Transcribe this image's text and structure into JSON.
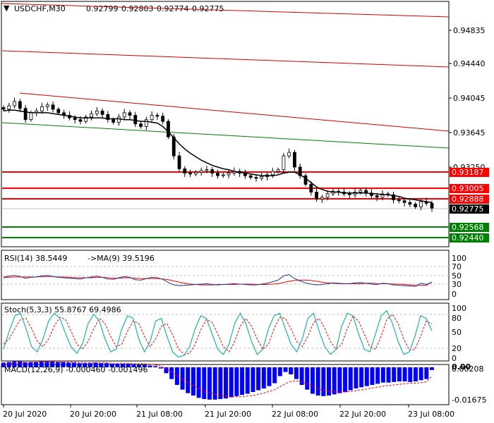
{
  "header": {
    "symbol_timeframe": "USDCHF,M30",
    "ohlc": [
      "0.92799",
      "0.92803",
      "0.92774",
      "0.92775"
    ]
  },
  "price_axis": {
    "ticks": [
      "0.94835",
      "0.94440",
      "0.94045",
      "0.93645",
      "0.93250"
    ]
  },
  "levels": {
    "resistance": [
      "0.93187",
      "0.93005",
      "0.92888"
    ],
    "current": "0.92775",
    "support": [
      "0.92568",
      "0.92440"
    ]
  },
  "indicators": {
    "rsi": {
      "label": "RSI(14) 38.5449",
      "ma_label": "->MA(9) 39.5196",
      "ticks": [
        "100",
        "70",
        "50",
        "30",
        "0"
      ]
    },
    "stoch": {
      "label": "Stoch(5,3,3) 55.8767 69.4986",
      "ticks": [
        "100",
        "80",
        "50",
        "20",
        "0"
      ]
    },
    "macd": {
      "label": "MACD(12,26,9) -0.000460 -0.001496",
      "ticks": [
        "0.00208",
        "0.00",
        "-0.01675"
      ]
    }
  },
  "time_axis": {
    "labels": [
      "20 Jul 2020",
      "20 Jul 20:00",
      "21 Jul 08:00",
      "21 Jul 20:00",
      "22 Jul 08:00",
      "22 Jul 20:00",
      "23 Jul 08:00"
    ]
  },
  "colors": {
    "candle": "#000000",
    "ma_line": "#000000",
    "channel_red": "#d40000",
    "channel_green": "#008000",
    "resistance": "#ff0000",
    "support": "#008000",
    "rsi_line": "#1f3a93",
    "rsi_ma": "#ff0000",
    "stoch_main": "#20b2aa",
    "stoch_signal": "#ff0000",
    "macd_hist": "#0000ff",
    "macd_signal": "#ff0000"
  },
  "chart_data": {
    "type": "candlestick",
    "symbol": "USDCHF",
    "timeframe": "M30",
    "price_range": [
      0.9238,
      0.9505
    ],
    "price_path": [
      0.9392,
      0.9396,
      0.9401,
      0.9393,
      0.938,
      0.9388,
      0.939,
      0.9395,
      0.9397,
      0.9392,
      0.9388,
      0.9385,
      0.9382,
      0.938,
      0.9378,
      0.9383,
      0.9387,
      0.939,
      0.9386,
      0.938,
      0.9377,
      0.9383,
      0.9388,
      0.9385,
      0.9375,
      0.9372,
      0.938,
      0.9385,
      0.9384,
      0.9378,
      0.936,
      0.9338,
      0.9323,
      0.9318,
      0.9317,
      0.9319,
      0.9321,
      0.9322,
      0.9318,
      0.9315,
      0.9316,
      0.9318,
      0.932,
      0.9318,
      0.9315,
      0.9313,
      0.9312,
      0.9314,
      0.9316,
      0.932,
      0.9322,
      0.9338,
      0.9342,
      0.9325,
      0.9315,
      0.9305,
      0.9296,
      0.9288,
      0.929,
      0.9294,
      0.9297,
      0.9296,
      0.9294,
      0.9293,
      0.9296,
      0.9298,
      0.9295,
      0.9292,
      0.929,
      0.9294,
      0.9293,
      0.9287,
      0.9286,
      0.9284,
      0.9282,
      0.9279,
      0.9285,
      0.9283,
      0.92775
    ],
    "moving_average": [
      0.939,
      0.9391,
      0.9391,
      0.939,
      0.9389,
      0.9388,
      0.9388,
      0.9388,
      0.9388,
      0.9387,
      0.9386,
      0.9385,
      0.9384,
      0.9383,
      0.9382,
      0.9382,
      0.9382,
      0.9382,
      0.9382,
      0.9381,
      0.9381,
      0.9381,
      0.938,
      0.938,
      0.9379,
      0.9378,
      0.9378,
      0.9377,
      0.9376,
      0.9372,
      0.9366,
      0.9359,
      0.9352,
      0.9346,
      0.9341,
      0.9337,
      0.9333,
      0.933,
      0.9327,
      0.9325,
      0.9323,
      0.9322,
      0.932,
      0.9319,
      0.9318,
      0.9317,
      0.9316,
      0.9315,
      0.9315,
      0.9315,
      0.9316,
      0.9318,
      0.9319,
      0.9319,
      0.9316,
      0.9312,
      0.9307,
      0.9302,
      0.9299,
      0.9297,
      0.9296,
      0.9296,
      0.9295,
      0.9295,
      0.9295,
      0.9295,
      0.9295,
      0.9294,
      0.9294,
      0.9293,
      0.9293,
      0.9292,
      0.9291,
      0.9289,
      0.9288,
      0.9287,
      0.9286,
      0.9285,
      0.9284
    ],
    "rsi": [
      52,
      54,
      56,
      53,
      49,
      51,
      52,
      55,
      56,
      53,
      51,
      50,
      49,
      48,
      47,
      50,
      52,
      54,
      51,
      47,
      46,
      50,
      53,
      51,
      45,
      44,
      48,
      51,
      50,
      46,
      38,
      32,
      30,
      31,
      32,
      33,
      34,
      35,
      33,
      32,
      33,
      34,
      35,
      34,
      33,
      32,
      32,
      34,
      36,
      40,
      44,
      55,
      58,
      48,
      42,
      37,
      34,
      32,
      33,
      35,
      37,
      36,
      35,
      35,
      37,
      38,
      36,
      34,
      33,
      36,
      35,
      32,
      31,
      30,
      29,
      28,
      36,
      33,
      38.5
    ],
    "rsi_ma": [
      50,
      51,
      52,
      52,
      52,
      52,
      52,
      53,
      53,
      53,
      52,
      52,
      51,
      50,
      50,
      50,
      50,
      51,
      51,
      50,
      49,
      49,
      50,
      50,
      49,
      48,
      48,
      48,
      48,
      47,
      45,
      42,
      39,
      36,
      34,
      33,
      32,
      32,
      32,
      33,
      33,
      33,
      33,
      34,
      34,
      34,
      33,
      33,
      33,
      34,
      35,
      38,
      41,
      43,
      44,
      44,
      43,
      41,
      39,
      37,
      36,
      35,
      35,
      35,
      35,
      35,
      36,
      36,
      35,
      35,
      35,
      34,
      34,
      33,
      32,
      31,
      31,
      31,
      39.5
    ],
    "stoch": [
      20,
      55,
      85,
      90,
      60,
      25,
      15,
      40,
      75,
      90,
      80,
      50,
      25,
      12,
      30,
      70,
      88,
      75,
      40,
      15,
      20,
      60,
      85,
      80,
      40,
      15,
      35,
      75,
      80,
      45,
      15,
      5,
      8,
      25,
      60,
      85,
      80,
      50,
      20,
      10,
      30,
      70,
      90,
      70,
      35,
      10,
      20,
      60,
      85,
      90,
      60,
      30,
      15,
      40,
      80,
      90,
      55,
      25,
      10,
      20,
      65,
      90,
      85,
      50,
      20,
      15,
      50,
      85,
      95,
      70,
      35,
      10,
      15,
      45,
      85,
      80,
      55.9
    ],
    "stoch_signal": [
      30,
      40,
      60,
      78,
      80,
      60,
      35,
      25,
      40,
      65,
      82,
      78,
      55,
      30,
      20,
      35,
      60,
      80,
      70,
      45,
      25,
      30,
      55,
      75,
      70,
      45,
      25,
      40,
      65,
      70,
      48,
      22,
      10,
      12,
      30,
      58,
      78,
      72,
      50,
      25,
      15,
      35,
      65,
      80,
      65,
      40,
      20,
      30,
      60,
      82,
      80,
      60,
      35,
      25,
      45,
      72,
      80,
      60,
      35,
      20,
      30,
      60,
      85,
      75,
      50,
      25,
      20,
      45,
      78,
      88,
      70,
      40,
      18,
      20,
      45,
      75,
      69.5
    ],
    "macd_hist": [
      0.0008,
      0.0009,
      0.001,
      0.001,
      0.0009,
      0.0009,
      0.0009,
      0.001,
      0.001,
      0.001,
      0.0009,
      0.0009,
      0.0008,
      0.0008,
      0.0007,
      0.0007,
      0.0007,
      0.0008,
      0.0007,
      0.0007,
      0.0006,
      0.0006,
      0.0006,
      0.0006,
      0.0005,
      0.0004,
      0.0004,
      0.0003,
      0.0002,
      -0.0002,
      -0.001,
      -0.002,
      -0.003,
      -0.0038,
      -0.0044,
      -0.0048,
      -0.0052,
      -0.0054,
      -0.0055,
      -0.0055,
      -0.0054,
      -0.0053,
      -0.0051,
      -0.0049,
      -0.0047,
      -0.0045,
      -0.0042,
      -0.0039,
      -0.0036,
      -0.0032,
      -0.0027,
      -0.0015,
      -0.0008,
      -0.0012,
      -0.002,
      -0.003,
      -0.0038,
      -0.0045,
      -0.0048,
      -0.0049,
      -0.0048,
      -0.0046,
      -0.0044,
      -0.0042,
      -0.0039,
      -0.0036,
      -0.0034,
      -0.0032,
      -0.003,
      -0.0028,
      -0.0026,
      -0.0026,
      -0.0025,
      -0.0024,
      -0.0024,
      -0.0025,
      -0.0024,
      -0.0022,
      -0.002,
      -0.00046
    ],
    "macd_signal": [
      0.0005,
      0.0006,
      0.0007,
      0.0008,
      0.0008,
      0.0008,
      0.0009,
      0.0009,
      0.0009,
      0.0009,
      0.0009,
      0.0009,
      0.0009,
      0.0009,
      0.0008,
      0.0008,
      0.0008,
      0.0008,
      0.0008,
      0.0008,
      0.0007,
      0.0007,
      0.0007,
      0.0007,
      0.0006,
      0.0006,
      0.0006,
      0.0005,
      0.0004,
      0.0002,
      -0.0002,
      -0.0008,
      -0.0014,
      -0.002,
      -0.0026,
      -0.0031,
      -0.0036,
      -0.004,
      -0.0043,
      -0.0046,
      -0.0048,
      -0.0049,
      -0.005,
      -0.005,
      -0.005,
      -0.0049,
      -0.0048,
      -0.0046,
      -0.0044,
      -0.0041,
      -0.0038,
      -0.0033,
      -0.0028,
      -0.0024,
      -0.0023,
      -0.0025,
      -0.0028,
      -0.0032,
      -0.0036,
      -0.0039,
      -0.0041,
      -0.0042,
      -0.0042,
      -0.0042,
      -0.0041,
      -0.004,
      -0.0038,
      -0.0037,
      -0.0035,
      -0.0034,
      -0.0032,
      -0.0031,
      -0.003,
      -0.0029,
      -0.0028,
      -0.0027,
      -0.0027,
      -0.0026,
      -0.0025,
      -0.001496
    ]
  }
}
